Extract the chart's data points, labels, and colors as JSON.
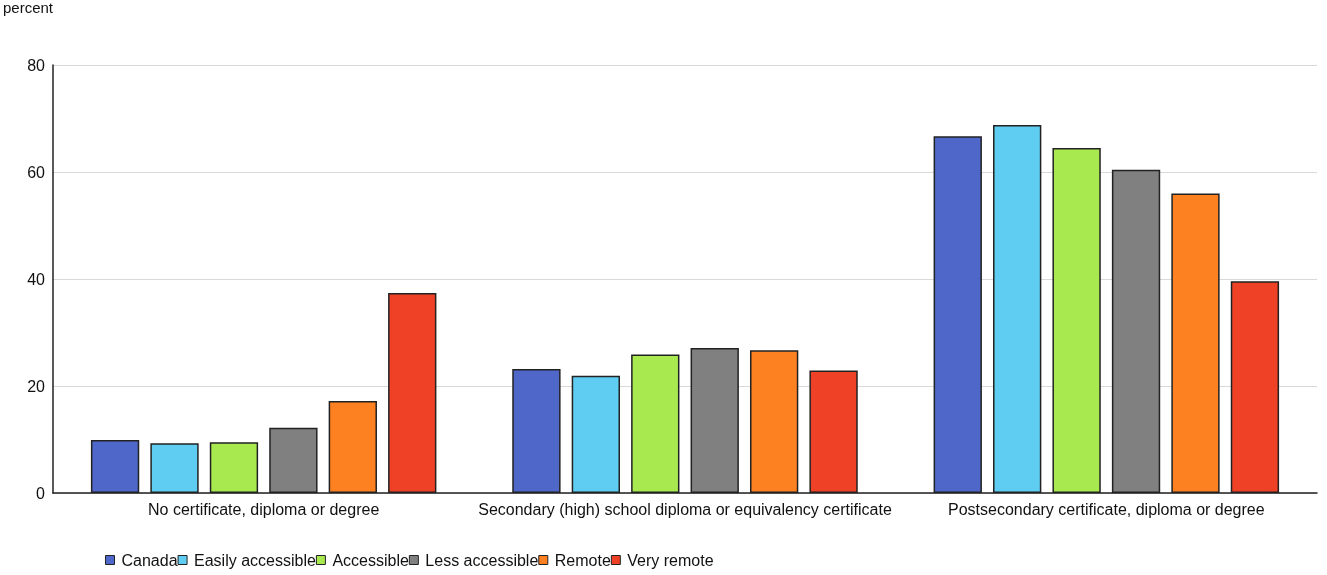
{
  "chart_data": {
    "type": "bar",
    "ylabel": "percent",
    "categories": [
      "No certificate, diploma or degree",
      "Secondary (high) school diploma or equivalency certificate",
      "Postsecondary certificate, diploma or degree"
    ],
    "series": [
      {
        "name": "Canada",
        "color": "#4f67c8",
        "values": [
          9.9,
          23.2,
          66.7
        ]
      },
      {
        "name": "Easily accessible",
        "color": "#5fcdf1",
        "values": [
          9.3,
          21.9,
          68.8
        ]
      },
      {
        "name": "Accessible",
        "color": "#a8e94f",
        "values": [
          9.5,
          25.9,
          64.5
        ]
      },
      {
        "name": "Less accessible",
        "color": "#808080",
        "values": [
          12.2,
          27.1,
          60.4
        ]
      },
      {
        "name": "Remote",
        "color": "#fd8021",
        "values": [
          17.2,
          26.7,
          56.0
        ]
      },
      {
        "name": "Very remote",
        "color": "#ee4125",
        "values": [
          37.4,
          22.9,
          39.6
        ]
      }
    ],
    "ylim": [
      0,
      80
    ],
    "yticks": [
      0,
      20,
      40,
      60,
      80
    ],
    "grid": "y",
    "legend": "bottom"
  }
}
